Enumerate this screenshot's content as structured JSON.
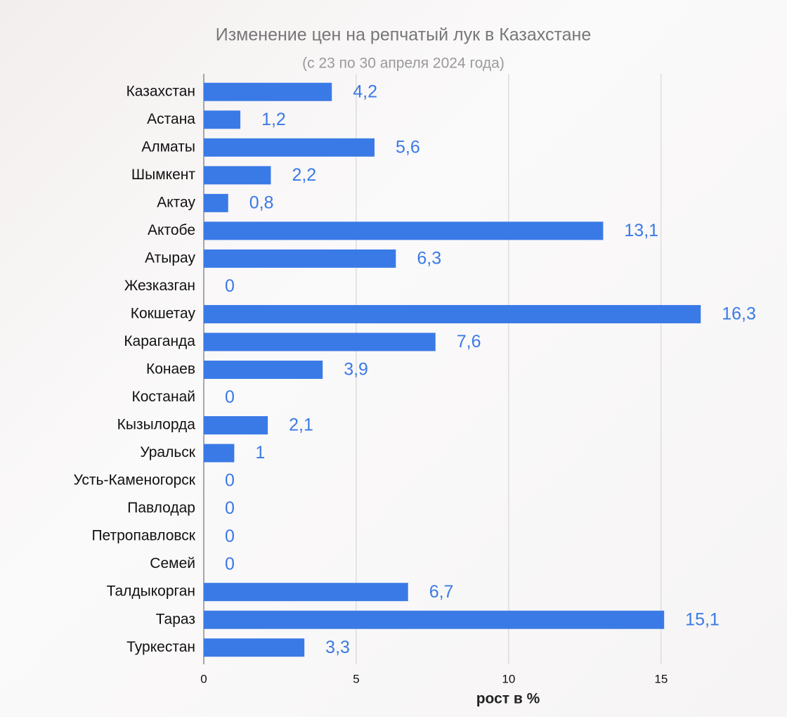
{
  "chart_data": {
    "type": "hbar",
    "title": "Изменение цен на репчатый лук в Казахстане",
    "subtitle": "(с 23 по 30 апреля 2024 года)",
    "x_label": "рост в %",
    "categories": [
      "Казахстан",
      "Астана",
      "Алматы",
      "Шымкент",
      "Актау",
      "Актобе",
      "Атырау",
      "Жезказган",
      "Кокшетау",
      "Караганда",
      "Конаев",
      "Костанай",
      "Кызылорда",
      "Уральск",
      "Усть-Каменогорск",
      "Павлодар",
      "Петропавловск",
      "Семей",
      "Талдыкорган",
      "Тараз",
      "Туркестан"
    ],
    "values": [
      4.2,
      1.2,
      5.6,
      2.2,
      0.8,
      13.1,
      6.3,
      0,
      16.3,
      7.6,
      3.9,
      0,
      2.1,
      1,
      0,
      0,
      0,
      0,
      6.7,
      15.1,
      3.3
    ],
    "value_labels": [
      "4,2",
      "1,2",
      "5,6",
      "2,2",
      "0,8",
      "13,1",
      "6,3",
      "0",
      "16,3",
      "7,6",
      "3,9",
      "0",
      "2,1",
      "1",
      "0",
      "0",
      "0",
      "0",
      "6,7",
      "15,1",
      "3,3"
    ],
    "color": "#3a7ae6",
    "xlim": [
      0,
      18
    ],
    "xticks": [
      0,
      5,
      10,
      15
    ],
    "grid": true
  }
}
